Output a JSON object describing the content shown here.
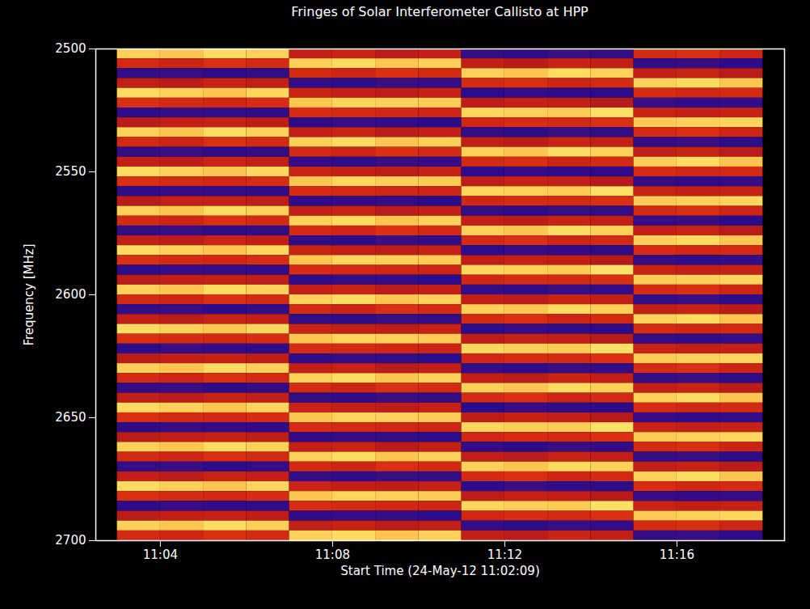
{
  "chart_data": {
    "type": "heatmap",
    "title": "Fringes of Solar Interferometer Callisto at HPP",
    "x_label": "Start Time (24-May-12 11:02:09)",
    "y_label": "Frequency [MHz]",
    "x_edges": [
      "2012-05-24T11:03:00",
      "2012-05-24T11:04:00",
      "2012-05-24T11:05:00",
      "2012-05-24T11:06:00",
      "2012-05-24T11:07:00",
      "2012-05-24T11:08:00",
      "2012-05-24T11:09:00",
      "2012-05-24T11:10:00",
      "2012-05-24T11:11:00",
      "2012-05-24T11:12:00",
      "2012-05-24T11:13:00",
      "2012-05-24T11:14:00",
      "2012-05-24T11:15:00",
      "2012-05-24T11:16:00",
      "2012-05-24T11:17:00",
      "2012-05-24T11:18:00"
    ],
    "y_edges": [
      2500,
      2504,
      2508,
      2512,
      2516,
      2520,
      2524,
      2528,
      2532,
      2536,
      2540,
      2544,
      2548,
      2552,
      2556,
      2560,
      2564,
      2568,
      2572,
      2576,
      2580,
      2584,
      2588,
      2592,
      2596,
      2600,
      2604,
      2608,
      2612,
      2616,
      2620,
      2624,
      2628,
      2632,
      2636,
      2640,
      2644,
      2648,
      2652,
      2656,
      2660,
      2664,
      2668,
      2672,
      2676,
      2680,
      2684,
      2688,
      2692,
      2696,
      2700
    ],
    "cells": [
      [
        0.9,
        0.88,
        0.92,
        0.9,
        0.5,
        0.52,
        0.48,
        0.5,
        0.15,
        0.13,
        0.17,
        0.15,
        0.55,
        0.57,
        0.53
      ],
      [
        0.55,
        0.53,
        0.57,
        0.55,
        0.9,
        0.92,
        0.88,
        0.9,
        0.5,
        0.48,
        0.52,
        0.5,
        0.15,
        0.17,
        0.13
      ],
      [
        0.15,
        0.17,
        0.13,
        0.15,
        0.55,
        0.53,
        0.57,
        0.55,
        0.9,
        0.88,
        0.92,
        0.9,
        0.5,
        0.52,
        0.48
      ],
      [
        0.5,
        0.48,
        0.52,
        0.5,
        0.15,
        0.13,
        0.17,
        0.15,
        0.55,
        0.57,
        0.53,
        0.55,
        0.9,
        0.92,
        0.88
      ],
      [
        0.92,
        0.9,
        0.88,
        0.91,
        0.52,
        0.5,
        0.49,
        0.51,
        0.12,
        0.16,
        0.14,
        0.13,
        0.56,
        0.54,
        0.55
      ],
      [
        0.57,
        0.55,
        0.54,
        0.56,
        0.88,
        0.91,
        0.9,
        0.89,
        0.49,
        0.51,
        0.5,
        0.47,
        0.16,
        0.14,
        0.15
      ],
      [
        0.13,
        0.16,
        0.15,
        0.14,
        0.56,
        0.55,
        0.54,
        0.53,
        0.91,
        0.9,
        0.89,
        0.93,
        0.52,
        0.5,
        0.51
      ],
      [
        0.48,
        0.5,
        0.51,
        0.49,
        0.14,
        0.16,
        0.15,
        0.12,
        0.54,
        0.56,
        0.55,
        0.57,
        0.89,
        0.9,
        0.91
      ],
      [
        0.9,
        0.88,
        0.92,
        0.9,
        0.5,
        0.52,
        0.48,
        0.5,
        0.15,
        0.13,
        0.17,
        0.15,
        0.55,
        0.57,
        0.53
      ],
      [
        0.55,
        0.53,
        0.57,
        0.55,
        0.9,
        0.92,
        0.88,
        0.9,
        0.5,
        0.48,
        0.52,
        0.5,
        0.15,
        0.17,
        0.13
      ],
      [
        0.15,
        0.17,
        0.13,
        0.15,
        0.55,
        0.53,
        0.57,
        0.55,
        0.9,
        0.88,
        0.92,
        0.9,
        0.5,
        0.52,
        0.48
      ],
      [
        0.5,
        0.48,
        0.52,
        0.5,
        0.15,
        0.13,
        0.17,
        0.15,
        0.55,
        0.57,
        0.53,
        0.55,
        0.9,
        0.92,
        0.88
      ],
      [
        0.92,
        0.9,
        0.88,
        0.91,
        0.52,
        0.5,
        0.49,
        0.51,
        0.12,
        0.16,
        0.14,
        0.13,
        0.56,
        0.54,
        0.55
      ],
      [
        0.57,
        0.55,
        0.54,
        0.56,
        0.88,
        0.91,
        0.9,
        0.89,
        0.49,
        0.51,
        0.5,
        0.47,
        0.16,
        0.14,
        0.15
      ],
      [
        0.13,
        0.16,
        0.15,
        0.14,
        0.56,
        0.55,
        0.54,
        0.53,
        0.91,
        0.9,
        0.89,
        0.93,
        0.52,
        0.5,
        0.51
      ],
      [
        0.48,
        0.5,
        0.51,
        0.49,
        0.14,
        0.16,
        0.15,
        0.12,
        0.54,
        0.56,
        0.55,
        0.57,
        0.89,
        0.9,
        0.91
      ],
      [
        0.9,
        0.88,
        0.92,
        0.9,
        0.5,
        0.52,
        0.48,
        0.5,
        0.15,
        0.13,
        0.17,
        0.15,
        0.55,
        0.57,
        0.53
      ],
      [
        0.55,
        0.53,
        0.57,
        0.55,
        0.9,
        0.92,
        0.88,
        0.9,
        0.5,
        0.48,
        0.52,
        0.5,
        0.15,
        0.17,
        0.13
      ],
      [
        0.15,
        0.17,
        0.13,
        0.15,
        0.55,
        0.53,
        0.57,
        0.55,
        0.9,
        0.88,
        0.92,
        0.9,
        0.5,
        0.52,
        0.48
      ],
      [
        0.5,
        0.48,
        0.52,
        0.5,
        0.15,
        0.13,
        0.17,
        0.15,
        0.55,
        0.57,
        0.53,
        0.55,
        0.9,
        0.92,
        0.88
      ],
      [
        0.92,
        0.9,
        0.88,
        0.91,
        0.52,
        0.5,
        0.49,
        0.51,
        0.12,
        0.16,
        0.14,
        0.13,
        0.56,
        0.54,
        0.55
      ],
      [
        0.57,
        0.55,
        0.54,
        0.56,
        0.88,
        0.91,
        0.9,
        0.89,
        0.49,
        0.51,
        0.5,
        0.47,
        0.16,
        0.14,
        0.15
      ],
      [
        0.13,
        0.16,
        0.15,
        0.14,
        0.56,
        0.55,
        0.54,
        0.53,
        0.91,
        0.9,
        0.89,
        0.93,
        0.52,
        0.5,
        0.51
      ],
      [
        0.48,
        0.5,
        0.51,
        0.49,
        0.14,
        0.16,
        0.15,
        0.12,
        0.54,
        0.56,
        0.55,
        0.57,
        0.89,
        0.9,
        0.91
      ],
      [
        0.9,
        0.88,
        0.92,
        0.9,
        0.5,
        0.52,
        0.48,
        0.5,
        0.15,
        0.13,
        0.17,
        0.15,
        0.55,
        0.57,
        0.53
      ],
      [
        0.55,
        0.53,
        0.57,
        0.55,
        0.9,
        0.92,
        0.88,
        0.9,
        0.5,
        0.48,
        0.52,
        0.5,
        0.15,
        0.17,
        0.13
      ],
      [
        0.15,
        0.17,
        0.13,
        0.15,
        0.55,
        0.53,
        0.57,
        0.55,
        0.9,
        0.88,
        0.92,
        0.9,
        0.5,
        0.52,
        0.48
      ],
      [
        0.5,
        0.48,
        0.52,
        0.5,
        0.15,
        0.13,
        0.17,
        0.15,
        0.55,
        0.57,
        0.53,
        0.55,
        0.9,
        0.92,
        0.88
      ],
      [
        0.92,
        0.9,
        0.88,
        0.91,
        0.52,
        0.5,
        0.49,
        0.51,
        0.12,
        0.16,
        0.14,
        0.13,
        0.56,
        0.54,
        0.55
      ],
      [
        0.57,
        0.55,
        0.54,
        0.56,
        0.88,
        0.91,
        0.9,
        0.89,
        0.49,
        0.51,
        0.5,
        0.47,
        0.16,
        0.14,
        0.15
      ],
      [
        0.13,
        0.16,
        0.15,
        0.14,
        0.56,
        0.55,
        0.54,
        0.53,
        0.91,
        0.9,
        0.89,
        0.93,
        0.52,
        0.5,
        0.51
      ],
      [
        0.48,
        0.5,
        0.51,
        0.49,
        0.14,
        0.16,
        0.15,
        0.12,
        0.54,
        0.56,
        0.55,
        0.57,
        0.89,
        0.9,
        0.91
      ],
      [
        0.9,
        0.88,
        0.92,
        0.9,
        0.5,
        0.52,
        0.48,
        0.5,
        0.15,
        0.13,
        0.17,
        0.15,
        0.55,
        0.57,
        0.53
      ],
      [
        0.55,
        0.53,
        0.57,
        0.55,
        0.9,
        0.92,
        0.88,
        0.9,
        0.5,
        0.48,
        0.52,
        0.5,
        0.15,
        0.17,
        0.13
      ],
      [
        0.15,
        0.17,
        0.13,
        0.15,
        0.55,
        0.53,
        0.57,
        0.55,
        0.9,
        0.88,
        0.92,
        0.9,
        0.5,
        0.52,
        0.48
      ],
      [
        0.5,
        0.48,
        0.52,
        0.5,
        0.15,
        0.13,
        0.17,
        0.15,
        0.55,
        0.57,
        0.53,
        0.55,
        0.9,
        0.92,
        0.88
      ],
      [
        0.92,
        0.9,
        0.88,
        0.91,
        0.52,
        0.5,
        0.49,
        0.51,
        0.12,
        0.16,
        0.14,
        0.13,
        0.56,
        0.54,
        0.55
      ],
      [
        0.57,
        0.55,
        0.54,
        0.56,
        0.88,
        0.91,
        0.9,
        0.89,
        0.49,
        0.51,
        0.5,
        0.47,
        0.16,
        0.14,
        0.15
      ],
      [
        0.13,
        0.16,
        0.15,
        0.14,
        0.56,
        0.55,
        0.54,
        0.53,
        0.91,
        0.9,
        0.89,
        0.93,
        0.52,
        0.5,
        0.51
      ],
      [
        0.48,
        0.5,
        0.51,
        0.49,
        0.14,
        0.16,
        0.15,
        0.12,
        0.54,
        0.56,
        0.55,
        0.57,
        0.89,
        0.9,
        0.91
      ],
      [
        0.9,
        0.88,
        0.92,
        0.9,
        0.5,
        0.52,
        0.48,
        0.5,
        0.15,
        0.13,
        0.17,
        0.15,
        0.55,
        0.57,
        0.53
      ],
      [
        0.55,
        0.53,
        0.57,
        0.55,
        0.9,
        0.92,
        0.88,
        0.9,
        0.5,
        0.48,
        0.52,
        0.5,
        0.15,
        0.17,
        0.13
      ],
      [
        0.15,
        0.17,
        0.13,
        0.15,
        0.55,
        0.53,
        0.57,
        0.55,
        0.9,
        0.88,
        0.92,
        0.9,
        0.5,
        0.52,
        0.48
      ],
      [
        0.5,
        0.48,
        0.52,
        0.5,
        0.15,
        0.13,
        0.17,
        0.15,
        0.55,
        0.57,
        0.53,
        0.55,
        0.9,
        0.92,
        0.88
      ],
      [
        0.92,
        0.9,
        0.88,
        0.91,
        0.52,
        0.5,
        0.49,
        0.51,
        0.12,
        0.16,
        0.14,
        0.13,
        0.56,
        0.54,
        0.55
      ],
      [
        0.57,
        0.55,
        0.54,
        0.56,
        0.88,
        0.91,
        0.9,
        0.89,
        0.49,
        0.51,
        0.5,
        0.47,
        0.16,
        0.14,
        0.15
      ],
      [
        0.13,
        0.16,
        0.15,
        0.14,
        0.56,
        0.55,
        0.54,
        0.53,
        0.91,
        0.9,
        0.89,
        0.93,
        0.52,
        0.5,
        0.51
      ],
      [
        0.48,
        0.5,
        0.51,
        0.49,
        0.14,
        0.16,
        0.15,
        0.12,
        0.54,
        0.56,
        0.55,
        0.57,
        0.89,
        0.9,
        0.91
      ],
      [
        0.9,
        0.88,
        0.92,
        0.9,
        0.5,
        0.52,
        0.48,
        0.5,
        0.15,
        0.13,
        0.17,
        0.15,
        0.55,
        0.57,
        0.53
      ],
      [
        0.55,
        0.53,
        0.57,
        0.55,
        0.9,
        0.92,
        0.88,
        0.9,
        0.5,
        0.48,
        0.52,
        0.5,
        0.15,
        0.17,
        0.13
      ]
    ],
    "xlim": [
      "2012-05-24T11:02:30",
      "2012-05-24T11:18:30"
    ],
    "xticks": [
      {
        "value": "2012-05-24T11:04:00",
        "label": "11:04"
      },
      {
        "value": "2012-05-24T11:08:00",
        "label": "11:08"
      },
      {
        "value": "2012-05-24T11:12:00",
        "label": "11:12"
      },
      {
        "value": "2012-05-24T11:16:00",
        "label": "11:16"
      }
    ],
    "ylim": [
      2500,
      2700
    ],
    "yticks": [
      2500,
      2550,
      2600,
      2650,
      2700
    ]
  }
}
